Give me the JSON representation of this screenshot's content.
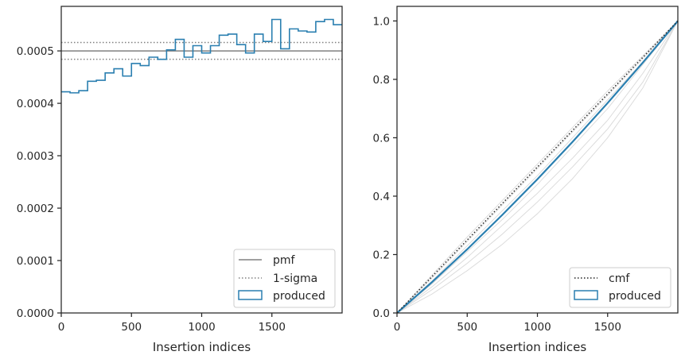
{
  "colors": {
    "produced": "#2a7fb0",
    "pmf": "#808080",
    "sigma": "#808080",
    "cmf": "#222222",
    "faint": "#d9d9d9",
    "axes": "#262626"
  },
  "chart_data": [
    {
      "type": "line",
      "xlabel": "Insertion indices",
      "ylabel": "",
      "xlim": [
        0,
        2000
      ],
      "ylim": [
        0,
        0.000585
      ],
      "xticks": [
        {
          "value": 0,
          "label": "0"
        },
        {
          "value": 500,
          "label": "500"
        },
        {
          "value": 1000,
          "label": "1000"
        },
        {
          "value": 1500,
          "label": "1500"
        }
      ],
      "yticks": [
        {
          "value": 0,
          "label": "0.0000"
        },
        {
          "value": 0.0001,
          "label": "0.0001"
        },
        {
          "value": 0.0002,
          "label": "0.0002"
        },
        {
          "value": 0.0003,
          "label": "0.0003"
        },
        {
          "value": 0.0004,
          "label": "0.0004"
        },
        {
          "value": 0.0005,
          "label": "0.0005"
        }
      ],
      "pmf": 0.0005,
      "sigma": [
        0.000484,
        0.000516
      ],
      "histogram": {
        "bin_width": 62.5,
        "edges_start": 0,
        "values": [
          0.000422,
          0.00042,
          0.000424,
          0.000442,
          0.000444,
          0.000458,
          0.000466,
          0.000452,
          0.000476,
          0.000472,
          0.000488,
          0.000484,
          0.000502,
          0.000522,
          0.000488,
          0.00051,
          0.000496,
          0.00051,
          0.00053,
          0.000532,
          0.000512,
          0.000496,
          0.000532,
          0.000518,
          0.00056,
          0.000504,
          0.000542,
          0.000538,
          0.000536,
          0.000556,
          0.00056,
          0.00055
        ]
      },
      "legend": {
        "position": "lower right",
        "entries": [
          {
            "label": "pmf",
            "style": "solid"
          },
          {
            "label": "1-sigma",
            "style": "dotted"
          },
          {
            "label": "produced",
            "style": "patch"
          }
        ]
      }
    },
    {
      "type": "line",
      "xlabel": "Insertion indices",
      "ylabel": "",
      "xlim": [
        0,
        2000
      ],
      "ylim": [
        0,
        1.05
      ],
      "xticks": [
        {
          "value": 0,
          "label": "0"
        },
        {
          "value": 500,
          "label": "500"
        },
        {
          "value": 1000,
          "label": "1000"
        },
        {
          "value": 1500,
          "label": "1500"
        }
      ],
      "yticks": [
        {
          "value": 0,
          "label": "0.0"
        },
        {
          "value": 0.2,
          "label": "0.2"
        },
        {
          "value": 0.4,
          "label": "0.4"
        },
        {
          "value": 0.6,
          "label": "0.6"
        },
        {
          "value": 0.8,
          "label": "0.8"
        },
        {
          "value": 1.0,
          "label": "1.0"
        }
      ],
      "cmf": {
        "x": [
          0,
          2000
        ],
        "y": [
          0,
          1
        ]
      },
      "produced": {
        "x": [
          0,
          250,
          500,
          750,
          1000,
          1250,
          1500,
          1750,
          2000
        ],
        "y": [
          0,
          0.106,
          0.218,
          0.336,
          0.458,
          0.586,
          0.719,
          0.857,
          1.0
        ]
      },
      "faint_series": [
        {
          "x": [
            0,
            250,
            500,
            750,
            1000,
            1250,
            1500,
            1750,
            2000
          ],
          "y": [
            0,
            0.08,
            0.17,
            0.27,
            0.38,
            0.5,
            0.63,
            0.79,
            1.0
          ]
        },
        {
          "x": [
            0,
            250,
            500,
            750,
            1000,
            1250,
            1500,
            1750,
            2000
          ],
          "y": [
            0,
            0.1,
            0.21,
            0.32,
            0.44,
            0.57,
            0.7,
            0.85,
            1.0
          ]
        },
        {
          "x": [
            0,
            250,
            500,
            750,
            1000,
            1250,
            1500,
            1750,
            2000
          ],
          "y": [
            0,
            0.11,
            0.23,
            0.35,
            0.47,
            0.6,
            0.73,
            0.86,
            1.0
          ]
        },
        {
          "x": [
            0,
            250,
            500,
            750,
            1000,
            1250,
            1500,
            1750,
            2000
          ],
          "y": [
            0,
            0.12,
            0.245,
            0.37,
            0.495,
            0.62,
            0.745,
            0.87,
            1.0
          ]
        },
        {
          "x": [
            0,
            250,
            500,
            750,
            1000,
            1250,
            1500,
            1750,
            2000
          ],
          "y": [
            0,
            0.09,
            0.19,
            0.3,
            0.41,
            0.53,
            0.66,
            0.82,
            1.0
          ]
        },
        {
          "x": [
            0,
            250,
            500,
            750,
            1000,
            1250,
            1500,
            1750,
            2000
          ],
          "y": [
            0,
            0.13,
            0.26,
            0.385,
            0.51,
            0.635,
            0.76,
            0.88,
            1.0
          ]
        },
        {
          "x": [
            0,
            250,
            500,
            750,
            1000,
            1250,
            1500,
            1750,
            2000
          ],
          "y": [
            0,
            0.065,
            0.145,
            0.235,
            0.34,
            0.46,
            0.6,
            0.77,
            1.0
          ]
        }
      ],
      "legend": {
        "position": "lower right",
        "entries": [
          {
            "label": "cmf",
            "style": "dotted"
          },
          {
            "label": "produced",
            "style": "patch"
          }
        ]
      }
    }
  ]
}
